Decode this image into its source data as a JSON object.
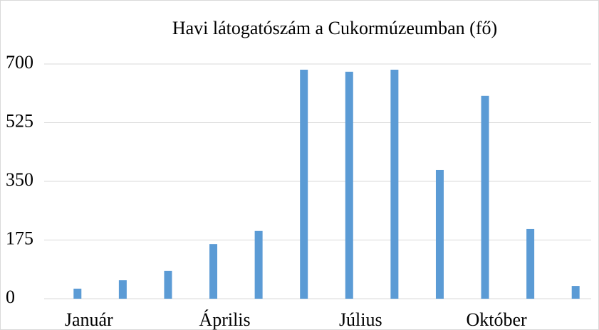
{
  "chart_data": {
    "type": "bar",
    "title": "Havi látogatószám a Cukormúzeumban (fő)",
    "categories": [
      "Január",
      null,
      null,
      "Április",
      null,
      null,
      "Július",
      null,
      null,
      "Október",
      null,
      null
    ],
    "values": [
      30,
      55,
      83,
      163,
      202,
      683,
      677,
      683,
      384,
      605,
      208,
      38
    ],
    "color": "#5b9bd5",
    "ylim": [
      0,
      700
    ],
    "yticks": [
      0,
      175,
      350,
      525,
      700
    ],
    "grid": true
  }
}
